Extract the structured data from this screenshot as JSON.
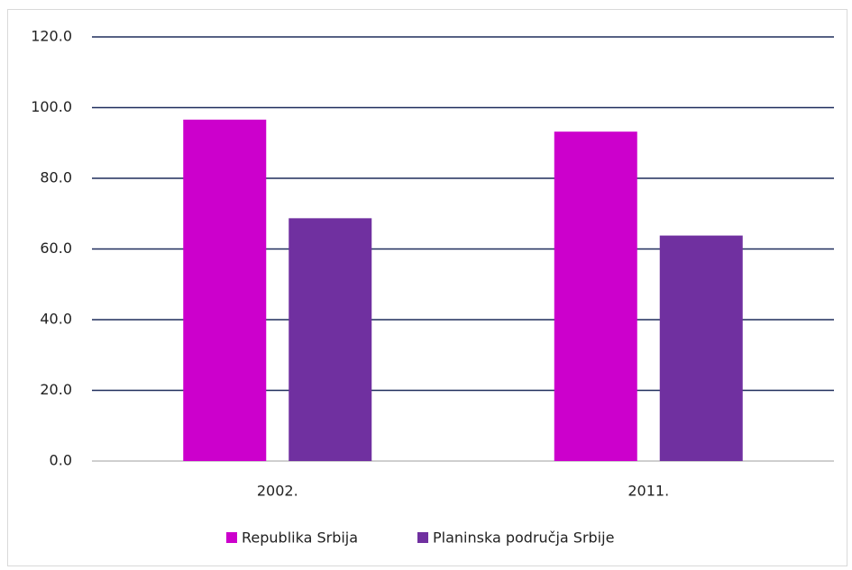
{
  "chart_data": {
    "type": "bar",
    "categories": [
      "2002.",
      "2011."
    ],
    "series": [
      {
        "name": "Republika Srbija",
        "color": "#cc00cc",
        "values": [
          96.6,
          93.2
        ]
      },
      {
        "name": "Planinska područja Srbije",
        "color": "#7030a0",
        "values": [
          68.7,
          63.8
        ]
      }
    ],
    "ylim": [
      0,
      120
    ],
    "yticks": [
      {
        "value": 0,
        "label": "0.0"
      },
      {
        "value": 20,
        "label": "20.0"
      },
      {
        "value": 40,
        "label": "40.0"
      },
      {
        "value": 60,
        "label": "60.0"
      },
      {
        "value": 80,
        "label": "80.0"
      },
      {
        "value": 100,
        "label": "100.0"
      },
      {
        "value": 120,
        "label": "120.0"
      }
    ],
    "grid": true,
    "legend": "bottom"
  }
}
